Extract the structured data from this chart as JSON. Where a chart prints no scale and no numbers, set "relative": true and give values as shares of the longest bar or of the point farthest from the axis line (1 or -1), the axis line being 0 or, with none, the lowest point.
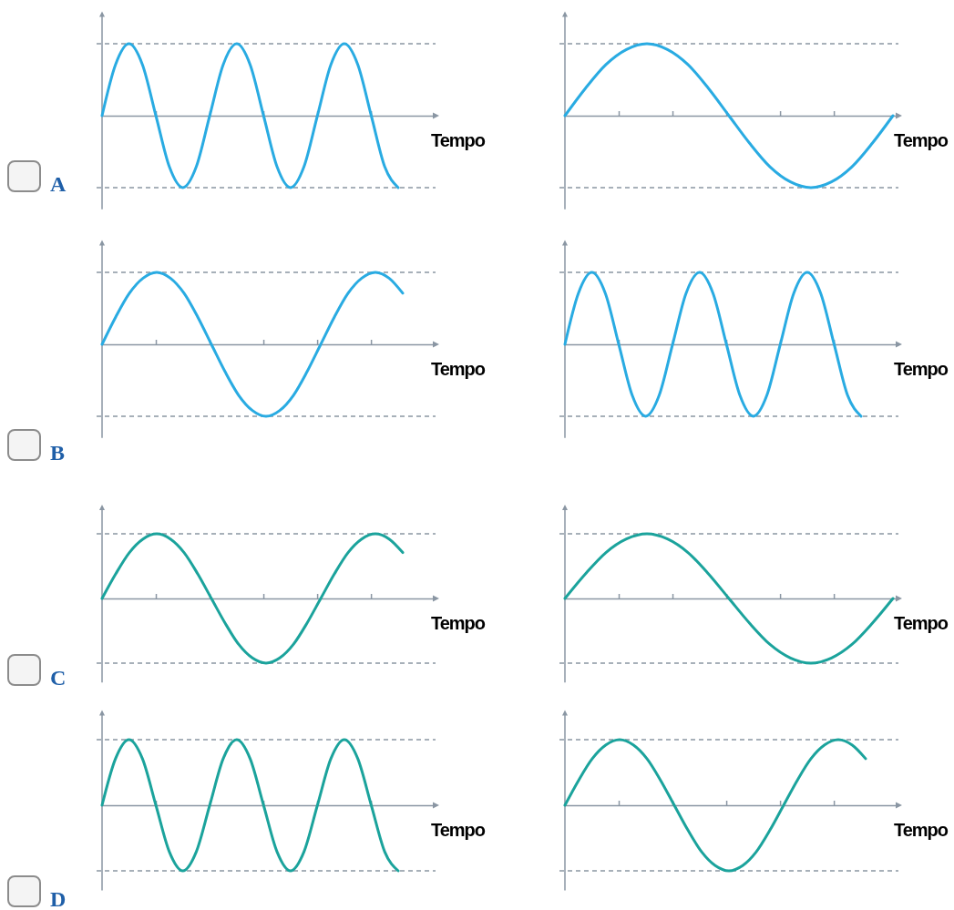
{
  "chart_data": [
    {
      "type": "line",
      "xlabel": "Tempo",
      "relative": true,
      "annotations": [
        "A"
      ],
      "categories": [
        null,
        null,
        null,
        null,
        null,
        null,
        null,
        null,
        null,
        null,
        null,
        null,
        null,
        null,
        null,
        null,
        null,
        null,
        null,
        null,
        null,
        null,
        null
      ],
      "series": [
        {
          "color": "#29abe2",
          "values": [
            0,
            0.71,
            1,
            0.71,
            0,
            -0.71,
            -1,
            -0.71,
            0,
            0.71,
            1,
            0.71,
            0,
            -0.71,
            -1,
            -0.71,
            0,
            0.71,
            1,
            0.71,
            0,
            -0.71,
            -1
          ]
        }
      ],
      "ref_lines": [
        {
          "axis": "y",
          "value": 1,
          "color": "#8a96a3",
          "line_style": "dashed"
        },
        {
          "axis": "y",
          "value": -1,
          "color": "#8a96a3",
          "line_style": "dashed"
        }
      ]
    },
    {
      "type": "line",
      "xlabel": "Tempo",
      "relative": true,
      "categories": [
        null,
        null,
        null,
        null,
        null,
        null,
        null,
        null,
        null,
        null,
        null,
        null,
        null,
        null,
        null,
        null,
        null
      ],
      "series": [
        {
          "color": "#29abe2",
          "values": [
            0,
            0.38,
            0.71,
            0.92,
            1,
            0.92,
            0.71,
            0.38,
            0,
            -0.38,
            -0.71,
            -0.92,
            -1,
            -0.92,
            -0.71,
            -0.38,
            0
          ]
        }
      ],
      "ref_lines": [
        {
          "axis": "y",
          "value": 1,
          "color": "#8a96a3",
          "line_style": "dashed"
        },
        {
          "axis": "y",
          "value": -1,
          "color": "#8a96a3",
          "line_style": "dashed"
        }
      ]
    },
    {
      "type": "line",
      "xlabel": "Tempo",
      "relative": true,
      "annotations": [
        "B"
      ],
      "categories": [
        null,
        null,
        null,
        null,
        null,
        null,
        null,
        null,
        null,
        null,
        null,
        null,
        null,
        null,
        null,
        null,
        null,
        null,
        null,
        null,
        null,
        null,
        null
      ],
      "series": [
        {
          "color": "#29abe2",
          "values": [
            0,
            0.38,
            0.71,
            0.92,
            1,
            0.92,
            0.71,
            0.38,
            0,
            -0.38,
            -0.71,
            -0.92,
            -1,
            -0.92,
            -0.71,
            -0.38,
            0,
            0.38,
            0.71,
            0.92,
            1,
            0.92,
            0.71
          ]
        }
      ],
      "ref_lines": [
        {
          "axis": "y",
          "value": 1,
          "color": "#8a96a3",
          "line_style": "dashed"
        },
        {
          "axis": "y",
          "value": -1,
          "color": "#8a96a3",
          "line_style": "dashed"
        }
      ]
    },
    {
      "type": "line",
      "xlabel": "Tempo",
      "relative": true,
      "categories": [
        null,
        null,
        null,
        null,
        null,
        null,
        null,
        null,
        null,
        null,
        null,
        null,
        null,
        null,
        null,
        null,
        null,
        null,
        null,
        null,
        null,
        null,
        null
      ],
      "series": [
        {
          "color": "#29abe2",
          "values": [
            0,
            0.71,
            1,
            0.71,
            0,
            -0.71,
            -1,
            -0.71,
            0,
            0.71,
            1,
            0.71,
            0,
            -0.71,
            -1,
            -0.71,
            0,
            0.71,
            1,
            0.71,
            0,
            -0.71,
            -1
          ]
        }
      ],
      "ref_lines": [
        {
          "axis": "y",
          "value": 1,
          "color": "#8a96a3",
          "line_style": "dashed"
        },
        {
          "axis": "y",
          "value": -1,
          "color": "#8a96a3",
          "line_style": "dashed"
        }
      ]
    },
    {
      "type": "line",
      "xlabel": "Tempo",
      "relative": true,
      "annotations": [
        "C"
      ],
      "categories": [
        null,
        null,
        null,
        null,
        null,
        null,
        null,
        null,
        null,
        null,
        null,
        null,
        null,
        null,
        null,
        null,
        null,
        null,
        null,
        null,
        null,
        null,
        null
      ],
      "series": [
        {
          "color": "#1ba39c",
          "values": [
            0,
            0.38,
            0.71,
            0.92,
            1,
            0.92,
            0.71,
            0.38,
            0,
            -0.38,
            -0.71,
            -0.92,
            -1,
            -0.92,
            -0.71,
            -0.38,
            0,
            0.38,
            0.71,
            0.92,
            1,
            0.92,
            0.71
          ]
        }
      ],
      "ref_lines": [
        {
          "axis": "y",
          "value": 1,
          "color": "#8a96a3",
          "line_style": "dashed"
        },
        {
          "axis": "y",
          "value": -1,
          "color": "#8a96a3",
          "line_style": "dashed"
        }
      ]
    },
    {
      "type": "line",
      "xlabel": "Tempo",
      "relative": true,
      "categories": [
        null,
        null,
        null,
        null,
        null,
        null,
        null,
        null,
        null,
        null,
        null,
        null,
        null,
        null,
        null,
        null,
        null
      ],
      "series": [
        {
          "color": "#1ba39c",
          "values": [
            0,
            0.38,
            0.71,
            0.92,
            1,
            0.92,
            0.71,
            0.38,
            0,
            -0.38,
            -0.71,
            -0.92,
            -1,
            -0.92,
            -0.71,
            -0.38,
            0
          ]
        }
      ],
      "ref_lines": [
        {
          "axis": "y",
          "value": 1,
          "color": "#8a96a3",
          "line_style": "dashed"
        },
        {
          "axis": "y",
          "value": -1,
          "color": "#8a96a3",
          "line_style": "dashed"
        }
      ]
    },
    {
      "type": "line",
      "xlabel": "Tempo",
      "relative": true,
      "annotations": [
        "D"
      ],
      "categories": [
        null,
        null,
        null,
        null,
        null,
        null,
        null,
        null,
        null,
        null,
        null,
        null,
        null,
        null,
        null,
        null,
        null,
        null,
        null,
        null,
        null,
        null,
        null
      ],
      "series": [
        {
          "color": "#1ba39c",
          "values": [
            0,
            0.71,
            1,
            0.71,
            0,
            -0.71,
            -1,
            -0.71,
            0,
            0.71,
            1,
            0.71,
            0,
            -0.71,
            -1,
            -0.71,
            0,
            0.71,
            1,
            0.71,
            0,
            -0.71,
            -1
          ]
        }
      ],
      "ref_lines": [
        {
          "axis": "y",
          "value": 1,
          "color": "#8a96a3",
          "line_style": "dashed"
        },
        {
          "axis": "y",
          "value": -1,
          "color": "#8a96a3",
          "line_style": "dashed"
        }
      ]
    },
    {
      "type": "line",
      "xlabel": "Tempo",
      "relative": true,
      "categories": [
        null,
        null,
        null,
        null,
        null,
        null,
        null,
        null,
        null,
        null,
        null,
        null,
        null,
        null,
        null,
        null,
        null,
        null,
        null,
        null,
        null,
        null,
        null
      ],
      "series": [
        {
          "color": "#1ba39c",
          "values": [
            0,
            0.38,
            0.71,
            0.92,
            1,
            0.92,
            0.71,
            0.38,
            0,
            -0.38,
            -0.71,
            -0.92,
            -1,
            -0.92,
            -0.71,
            -0.38,
            0,
            0.38,
            0.71,
            0.92,
            1,
            0.92,
            0.71
          ]
        }
      ],
      "ref_lines": [
        {
          "axis": "y",
          "value": 1,
          "color": "#8a96a3",
          "line_style": "dashed"
        },
        {
          "axis": "y",
          "value": -1,
          "color": "#8a96a3",
          "line_style": "dashed"
        }
      ]
    }
  ]
}
